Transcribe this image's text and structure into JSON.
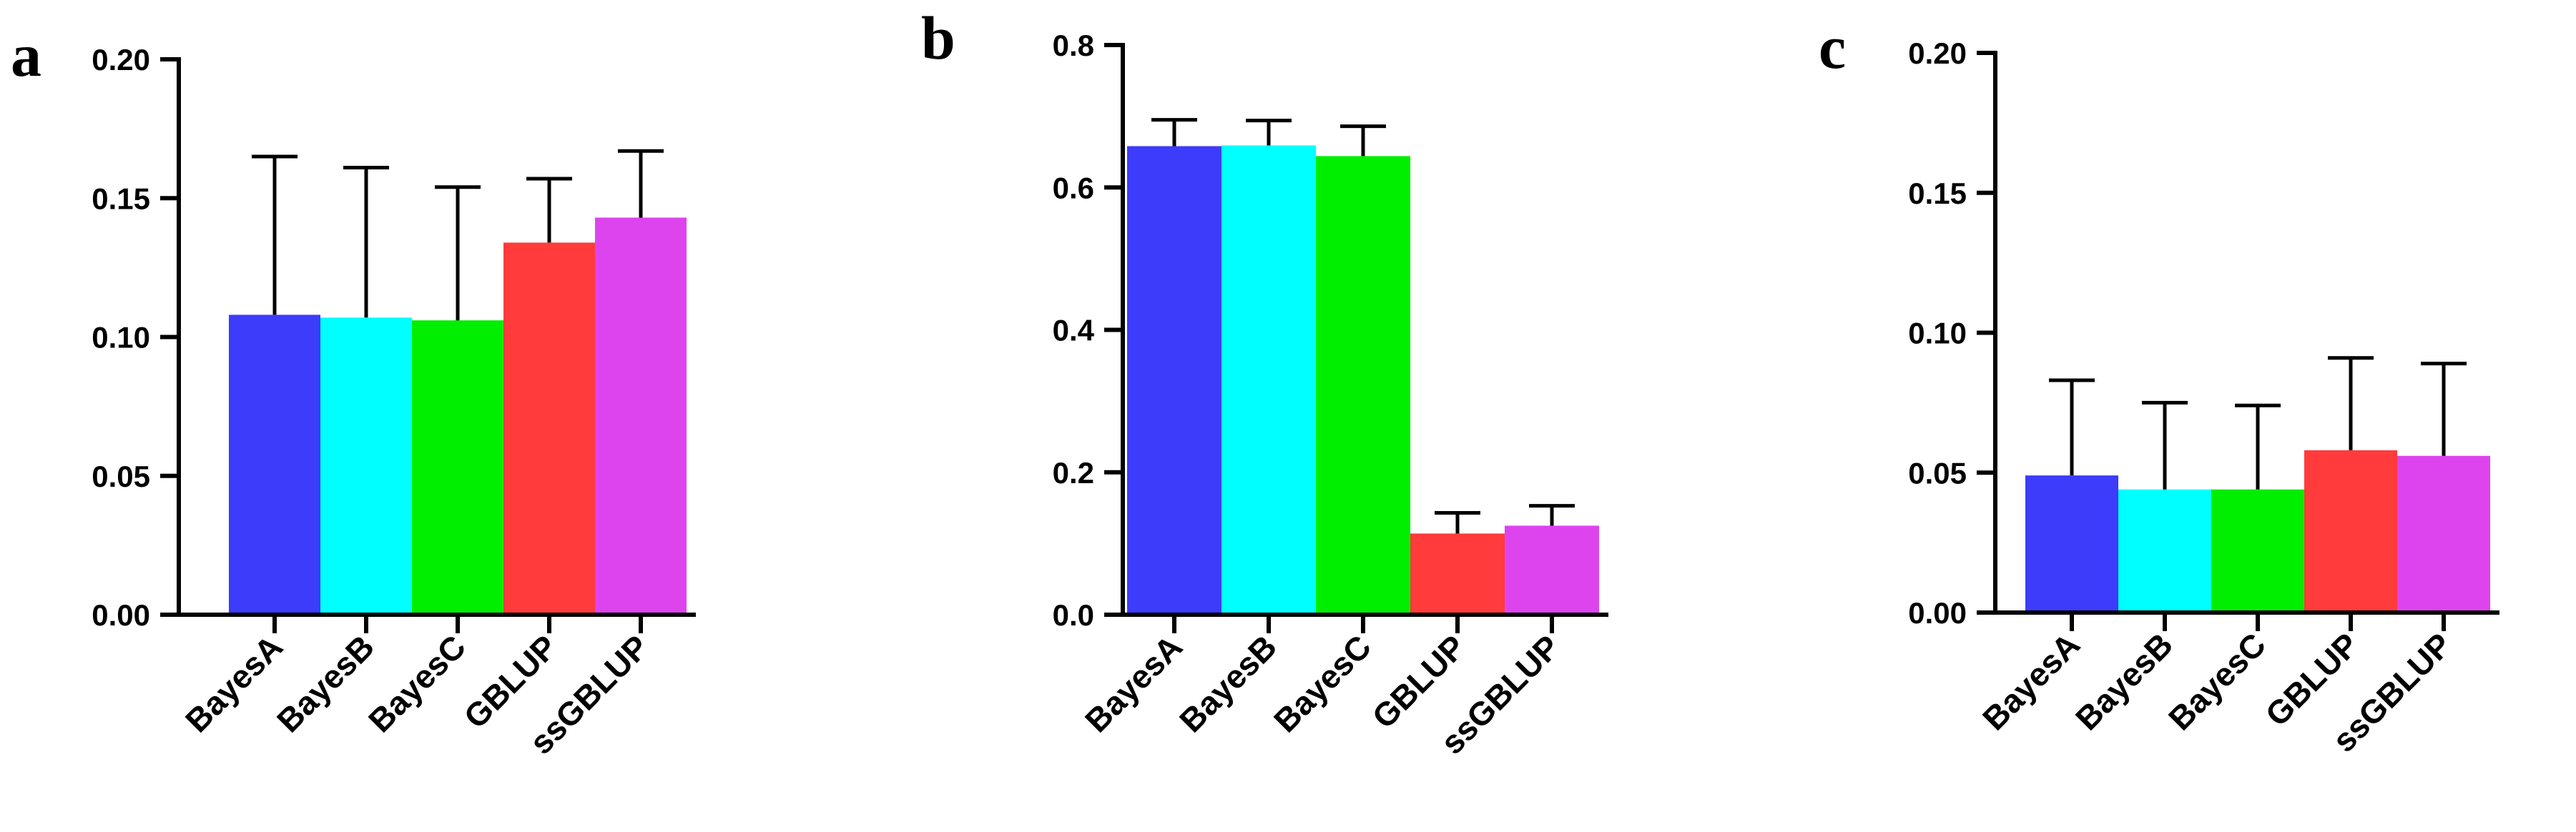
{
  "chart_data": [
    {
      "type": "bar",
      "panel_label": "a",
      "categories": [
        "BayesA",
        "BayesB",
        "BayesC",
        "GBLUP",
        "ssGBLUP"
      ],
      "values": [
        0.108,
        0.107,
        0.106,
        0.134,
        0.143
      ],
      "error_upper": [
        0.165,
        0.161,
        0.154,
        0.157,
        0.167
      ],
      "colors": [
        "#3c3cfa",
        "#00ffff",
        "#00ee00",
        "#ff3b3b",
        "#dd44ee"
      ],
      "ylim": [
        0,
        0.2
      ],
      "yticks": [
        "0.00",
        "0.05",
        "0.10",
        "0.15",
        "0.20"
      ],
      "grid": false,
      "legend": false
    },
    {
      "type": "bar",
      "panel_label": "b",
      "categories": [
        "BayesA",
        "BayesB",
        "BayesC",
        "GBLUP",
        "ssGBLUP"
      ],
      "values": [
        0.658,
        0.659,
        0.644,
        0.114,
        0.125
      ],
      "error_upper": [
        0.695,
        0.694,
        0.686,
        0.143,
        0.153
      ],
      "colors": [
        "#3c3cfa",
        "#00ffff",
        "#00ee00",
        "#ff3b3b",
        "#dd44ee"
      ],
      "ylim": [
        0,
        0.8
      ],
      "yticks": [
        "0.0",
        "0.2",
        "0.4",
        "0.6",
        "0.8"
      ],
      "grid": false,
      "legend": false
    },
    {
      "type": "bar",
      "panel_label": "c",
      "categories": [
        "BayesA",
        "BayesB",
        "BayesC",
        "GBLUP",
        "ssGBLUP"
      ],
      "values": [
        0.049,
        0.044,
        0.044,
        0.058,
        0.056
      ],
      "error_upper": [
        0.083,
        0.075,
        0.074,
        0.091,
        0.089
      ],
      "colors": [
        "#3c3cfa",
        "#00ffff",
        "#00ee00",
        "#ff3b3b",
        "#dd44ee"
      ],
      "ylim": [
        0,
        0.2
      ],
      "yticks": [
        "0.00",
        "0.05",
        "0.10",
        "0.15",
        "0.20"
      ],
      "grid": false,
      "legend": false
    }
  ]
}
